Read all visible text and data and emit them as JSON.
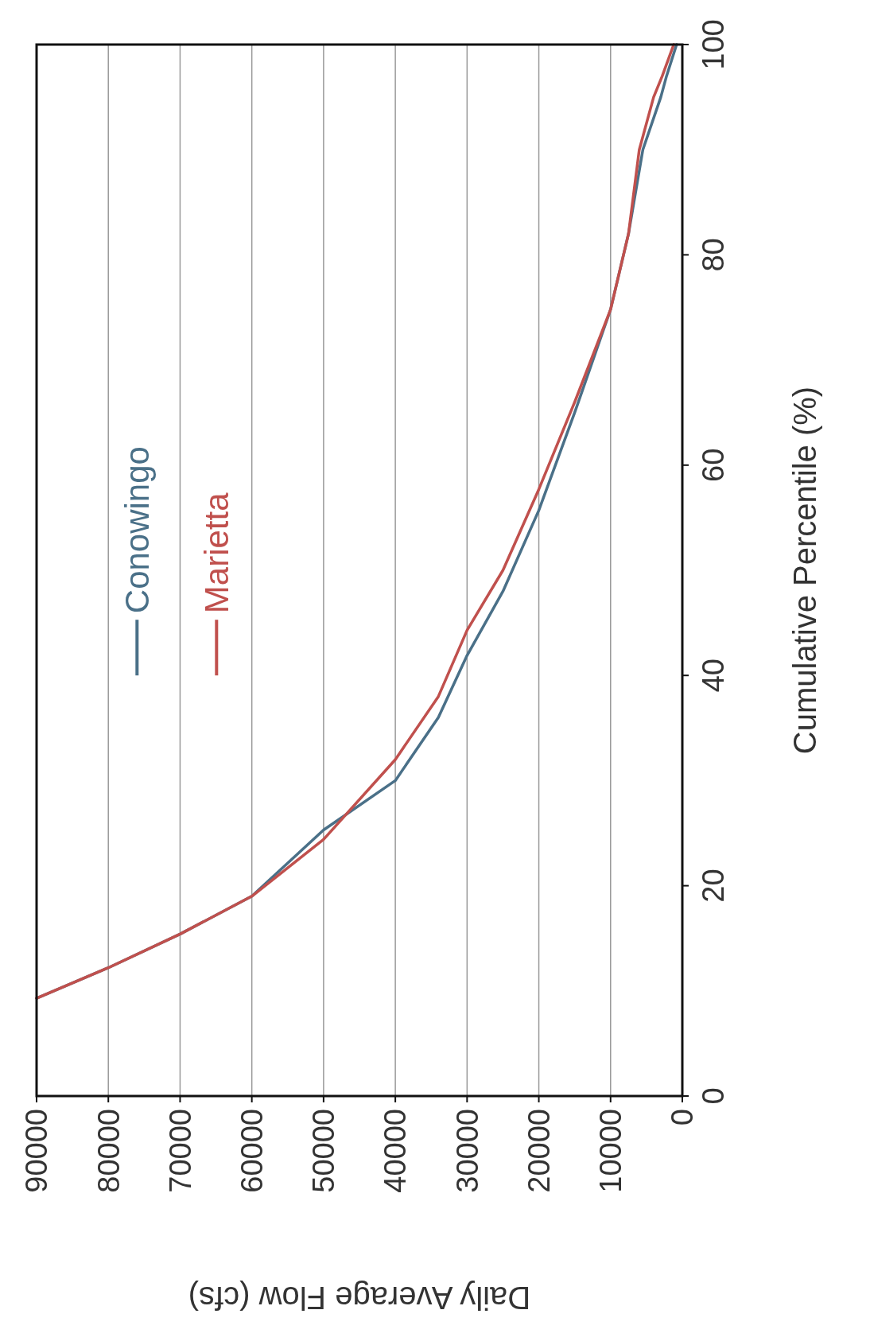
{
  "chart_data": {
    "type": "line",
    "xlabel": "Daily Average Flow (cfs)",
    "ylabel": "Cumulative Percentile (%)",
    "xlim": [
      90000,
      0
    ],
    "ylim": [
      0,
      100
    ],
    "xticks": [
      0,
      10000,
      20000,
      30000,
      40000,
      50000,
      60000,
      70000,
      80000,
      90000
    ],
    "yticks": [
      0,
      20,
      40,
      60,
      80,
      100
    ],
    "grid": "x",
    "legend": "top",
    "line_style": "solid",
    "marker": "none",
    "series": [
      {
        "name": "Conowingo",
        "color": "#4a7088",
        "x": [
          90000,
          80000,
          70000,
          60000,
          50000,
          40000,
          34000,
          30000,
          25000,
          20000,
          15000,
          10000,
          7500,
          5500,
          3000,
          2200,
          800
        ],
        "values": [
          9.3,
          12.2,
          15.4,
          19,
          25.3,
          30,
          36,
          41.9,
          48,
          55.7,
          65,
          74.8,
          82,
          90,
          95,
          97,
          100
        ]
      },
      {
        "name": "Marietta",
        "color": "#c0504d",
        "x": [
          90000,
          80000,
          70000,
          60000,
          50000,
          40000,
          34000,
          30000,
          25000,
          20000,
          15000,
          10000,
          7500,
          6000,
          4000,
          2800,
          1200
        ],
        "values": [
          9.3,
          12.2,
          15.4,
          19,
          24.4,
          32,
          38,
          44.3,
          50,
          57.7,
          66,
          74.8,
          82,
          90,
          95,
          97,
          100
        ]
      }
    ]
  }
}
